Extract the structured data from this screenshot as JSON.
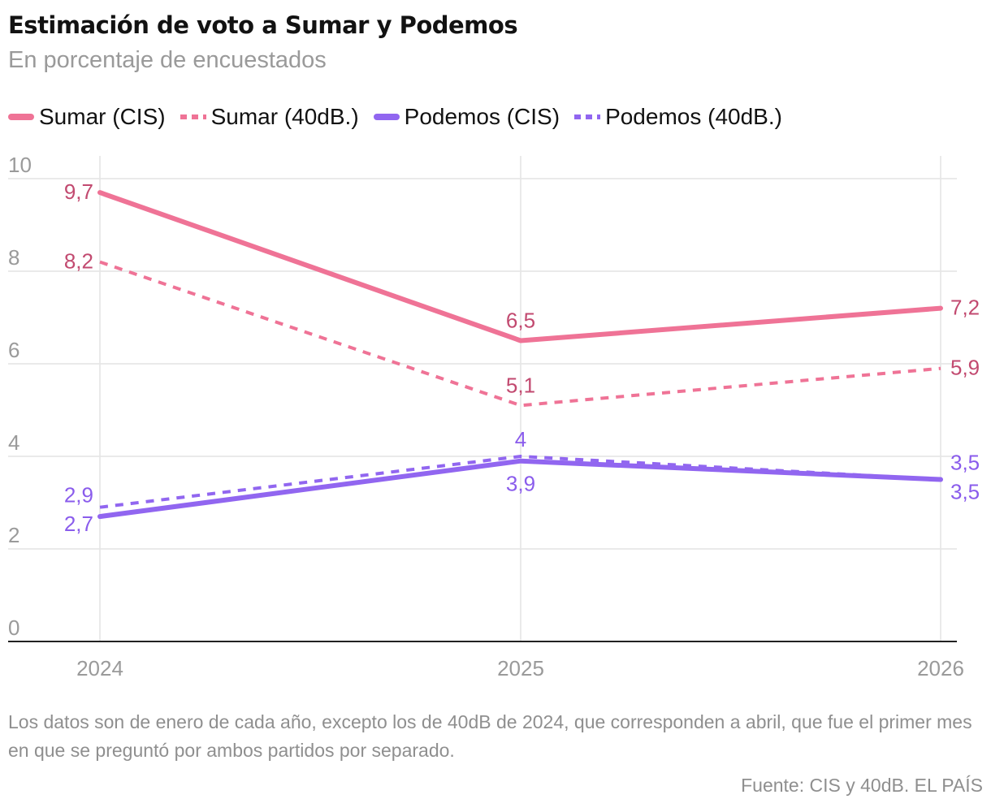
{
  "chart_data": {
    "type": "line",
    "title": "Estimación de voto a Sumar y Podemos",
    "subtitle": "En porcentaje de encuestados",
    "x": [
      "2024",
      "2025",
      "2026"
    ],
    "ylim": [
      0,
      10
    ],
    "yticks": [
      "0",
      "2",
      "4",
      "6",
      "8",
      "10"
    ],
    "grid": true,
    "legend_position": "top",
    "series": [
      {
        "name": "Sumar (CIS)",
        "values": [
          9.7,
          6.5,
          7.2
        ],
        "labels": [
          "9,7",
          "6,5",
          "7,2"
        ],
        "color": "#ef7396",
        "label_color": "#c24a70",
        "style": "solid"
      },
      {
        "name": "Sumar (40dB.)",
        "values": [
          8.2,
          5.1,
          5.9
        ],
        "labels": [
          "8,2",
          "5,1",
          "5,9"
        ],
        "color": "#ef7396",
        "label_color": "#c24a70",
        "style": "dashed"
      },
      {
        "name": "Podemos (CIS)",
        "values": [
          2.7,
          3.9,
          3.5
        ],
        "labels": [
          "2,7",
          "3,9",
          "3,5"
        ],
        "color": "#9166f0",
        "label_color": "#8a5cec",
        "style": "solid"
      },
      {
        "name": "Podemos (40dB.)",
        "values": [
          2.9,
          4.0,
          3.5
        ],
        "labels": [
          "2,9",
          "4",
          "3,5"
        ],
        "color": "#9166f0",
        "label_color": "#8a5cec",
        "style": "dashed"
      }
    ],
    "note": "Los datos son de enero de cada año, excepto los de 40dB de 2024, que corresponden a abril, que fue el primer mes en que se preguntó por ambos partidos por separado.",
    "source": "Fuente: CIS y 40dB. EL PAÍS"
  }
}
